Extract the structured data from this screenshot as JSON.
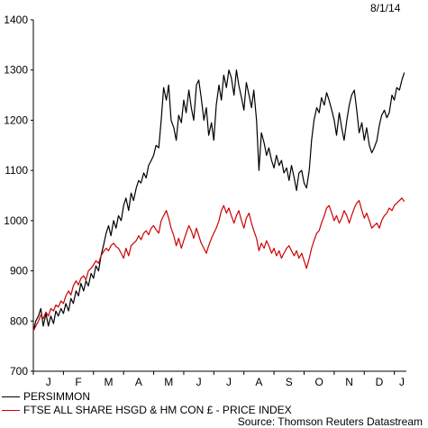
{
  "date_stamp": "8/1/14",
  "legend": [
    {
      "label": "PERSIMMON",
      "color": "#000000"
    },
    {
      "label": "FTSE ALL SHARE HSGD & HM CON £ - PRICE INDEX",
      "color": "#cc0000"
    }
  ],
  "source": "Source: Thomson Reuters Datastream",
  "chart_data": {
    "type": "line",
    "ylim": [
      700,
      1400
    ],
    "y_ticks": [
      700,
      800,
      900,
      1000,
      1100,
      1200,
      1300,
      1400
    ],
    "x_tick_labels": [
      "J",
      "F",
      "M",
      "A",
      "M",
      "J",
      "J",
      "A",
      "S",
      "O",
      "N",
      "D",
      "J"
    ],
    "x_range_months": [
      0,
      12.4
    ],
    "grid": false,
    "legend_position": "bottom",
    "series": [
      {
        "name": "PERSIMMON",
        "color": "#000000",
        "points": [
          [
            0.0,
            780
          ],
          [
            0.08,
            800
          ],
          [
            0.17,
            810
          ],
          [
            0.25,
            825
          ],
          [
            0.33,
            790
          ],
          [
            0.42,
            815
          ],
          [
            0.5,
            790
          ],
          [
            0.58,
            810
          ],
          [
            0.67,
            795
          ],
          [
            0.75,
            820
          ],
          [
            0.83,
            810
          ],
          [
            0.92,
            825
          ],
          [
            1.0,
            815
          ],
          [
            1.08,
            835
          ],
          [
            1.17,
            820
          ],
          [
            1.25,
            845
          ],
          [
            1.33,
            835
          ],
          [
            1.42,
            860
          ],
          [
            1.5,
            850
          ],
          [
            1.58,
            875
          ],
          [
            1.67,
            860
          ],
          [
            1.75,
            880
          ],
          [
            1.83,
            870
          ],
          [
            1.92,
            895
          ],
          [
            2.0,
            885
          ],
          [
            2.08,
            910
          ],
          [
            2.17,
            900
          ],
          [
            2.25,
            930
          ],
          [
            2.33,
            950
          ],
          [
            2.42,
            975
          ],
          [
            2.5,
            990
          ],
          [
            2.58,
            970
          ],
          [
            2.67,
            1000
          ],
          [
            2.75,
            985
          ],
          [
            2.83,
            1010
          ],
          [
            2.92,
            1000
          ],
          [
            3.0,
            1030
          ],
          [
            3.08,
            1045
          ],
          [
            3.17,
            1020
          ],
          [
            3.25,
            1055
          ],
          [
            3.33,
            1040
          ],
          [
            3.42,
            1065
          ],
          [
            3.5,
            1080
          ],
          [
            3.58,
            1075
          ],
          [
            3.67,
            1095
          ],
          [
            3.75,
            1085
          ],
          [
            3.83,
            1110
          ],
          [
            3.92,
            1120
          ],
          [
            4.0,
            1130
          ],
          [
            4.08,
            1150
          ],
          [
            4.17,
            1145
          ],
          [
            4.25,
            1200
          ],
          [
            4.33,
            1265
          ],
          [
            4.42,
            1240
          ],
          [
            4.5,
            1270
          ],
          [
            4.58,
            1200
          ],
          [
            4.67,
            1185
          ],
          [
            4.75,
            1160
          ],
          [
            4.83,
            1210
          ],
          [
            4.92,
            1195
          ],
          [
            5.0,
            1240
          ],
          [
            5.08,
            1215
          ],
          [
            5.17,
            1260
          ],
          [
            5.25,
            1225
          ],
          [
            5.33,
            1200
          ],
          [
            5.42,
            1270
          ],
          [
            5.5,
            1280
          ],
          [
            5.58,
            1245
          ],
          [
            5.67,
            1200
          ],
          [
            5.75,
            1225
          ],
          [
            5.83,
            1170
          ],
          [
            5.92,
            1195
          ],
          [
            6.0,
            1160
          ],
          [
            6.08,
            1230
          ],
          [
            6.17,
            1270
          ],
          [
            6.25,
            1240
          ],
          [
            6.33,
            1290
          ],
          [
            6.42,
            1265
          ],
          [
            6.5,
            1300
          ],
          [
            6.58,
            1285
          ],
          [
            6.67,
            1250
          ],
          [
            6.75,
            1300
          ],
          [
            6.83,
            1270
          ],
          [
            6.92,
            1245
          ],
          [
            7.0,
            1220
          ],
          [
            7.08,
            1275
          ],
          [
            7.17,
            1250
          ],
          [
            7.25,
            1225
          ],
          [
            7.33,
            1260
          ],
          [
            7.42,
            1200
          ],
          [
            7.5,
            1100
          ],
          [
            7.58,
            1175
          ],
          [
            7.67,
            1155
          ],
          [
            7.75,
            1130
          ],
          [
            7.83,
            1145
          ],
          [
            7.92,
            1120
          ],
          [
            8.0,
            1105
          ],
          [
            8.08,
            1130
          ],
          [
            8.17,
            1110
          ],
          [
            8.25,
            1120
          ],
          [
            8.33,
            1095
          ],
          [
            8.42,
            1105
          ],
          [
            8.5,
            1080
          ],
          [
            8.58,
            1110
          ],
          [
            8.67,
            1085
          ],
          [
            8.75,
            1060
          ],
          [
            8.83,
            1095
          ],
          [
            8.92,
            1100
          ],
          [
            9.0,
            1075
          ],
          [
            9.08,
            1065
          ],
          [
            9.17,
            1100
          ],
          [
            9.25,
            1160
          ],
          [
            9.33,
            1200
          ],
          [
            9.42,
            1225
          ],
          [
            9.5,
            1215
          ],
          [
            9.58,
            1245
          ],
          [
            9.67,
            1230
          ],
          [
            9.75,
            1255
          ],
          [
            9.83,
            1240
          ],
          [
            9.92,
            1220
          ],
          [
            10.0,
            1200
          ],
          [
            10.08,
            1170
          ],
          [
            10.17,
            1215
          ],
          [
            10.25,
            1185
          ],
          [
            10.33,
            1160
          ],
          [
            10.42,
            1200
          ],
          [
            10.5,
            1230
          ],
          [
            10.58,
            1250
          ],
          [
            10.67,
            1260
          ],
          [
            10.75,
            1220
          ],
          [
            10.83,
            1175
          ],
          [
            10.92,
            1195
          ],
          [
            11.0,
            1160
          ],
          [
            11.08,
            1185
          ],
          [
            11.17,
            1150
          ],
          [
            11.25,
            1135
          ],
          [
            11.33,
            1145
          ],
          [
            11.42,
            1160
          ],
          [
            11.5,
            1190
          ],
          [
            11.58,
            1210
          ],
          [
            11.67,
            1220
          ],
          [
            11.75,
            1205
          ],
          [
            11.83,
            1215
          ],
          [
            11.92,
            1250
          ],
          [
            12.0,
            1240
          ],
          [
            12.08,
            1265
          ],
          [
            12.17,
            1260
          ],
          [
            12.25,
            1280
          ],
          [
            12.33,
            1295
          ]
        ]
      },
      {
        "name": "FTSE ALL SHARE HSGD & HM CON £ - PRICE INDEX",
        "color": "#cc0000",
        "points": [
          [
            0.0,
            780
          ],
          [
            0.08,
            790
          ],
          [
            0.17,
            800
          ],
          [
            0.25,
            812
          ],
          [
            0.33,
            805
          ],
          [
            0.42,
            818
          ],
          [
            0.5,
            810
          ],
          [
            0.58,
            825
          ],
          [
            0.67,
            820
          ],
          [
            0.75,
            832
          ],
          [
            0.83,
            828
          ],
          [
            0.92,
            840
          ],
          [
            1.0,
            835
          ],
          [
            1.08,
            850
          ],
          [
            1.17,
            860
          ],
          [
            1.25,
            852
          ],
          [
            1.33,
            870
          ],
          [
            1.42,
            880
          ],
          [
            1.5,
            872
          ],
          [
            1.58,
            885
          ],
          [
            1.67,
            890
          ],
          [
            1.75,
            882
          ],
          [
            1.83,
            900
          ],
          [
            1.92,
            905
          ],
          [
            2.0,
            912
          ],
          [
            2.08,
            920
          ],
          [
            2.17,
            915
          ],
          [
            2.25,
            930
          ],
          [
            2.33,
            938
          ],
          [
            2.42,
            945
          ],
          [
            2.5,
            940
          ],
          [
            2.58,
            950
          ],
          [
            2.67,
            955
          ],
          [
            2.75,
            948
          ],
          [
            2.83,
            945
          ],
          [
            2.92,
            935
          ],
          [
            3.0,
            925
          ],
          [
            3.08,
            945
          ],
          [
            3.17,
            930
          ],
          [
            3.25,
            950
          ],
          [
            3.33,
            955
          ],
          [
            3.42,
            960
          ],
          [
            3.5,
            970
          ],
          [
            3.58,
            962
          ],
          [
            3.67,
            975
          ],
          [
            3.75,
            980
          ],
          [
            3.83,
            972
          ],
          [
            3.92,
            985
          ],
          [
            4.0,
            990
          ],
          [
            4.08,
            982
          ],
          [
            4.17,
            975
          ],
          [
            4.25,
            1000
          ],
          [
            4.33,
            1010
          ],
          [
            4.42,
            1020
          ],
          [
            4.5,
            1005
          ],
          [
            4.58,
            985
          ],
          [
            4.67,
            970
          ],
          [
            4.75,
            950
          ],
          [
            4.83,
            965
          ],
          [
            4.92,
            945
          ],
          [
            5.0,
            960
          ],
          [
            5.08,
            975
          ],
          [
            5.17,
            990
          ],
          [
            5.25,
            980
          ],
          [
            5.33,
            965
          ],
          [
            5.42,
            985
          ],
          [
            5.5,
            970
          ],
          [
            5.58,
            955
          ],
          [
            5.67,
            945
          ],
          [
            5.75,
            935
          ],
          [
            5.83,
            950
          ],
          [
            5.92,
            965
          ],
          [
            6.0,
            975
          ],
          [
            6.08,
            985
          ],
          [
            6.17,
            1000
          ],
          [
            6.25,
            1020
          ],
          [
            6.33,
            1030
          ],
          [
            6.42,
            1015
          ],
          [
            6.5,
            1025
          ],
          [
            6.58,
            1010
          ],
          [
            6.67,
            995
          ],
          [
            6.75,
            1010
          ],
          [
            6.83,
            1020
          ],
          [
            6.92,
            1000
          ],
          [
            7.0,
            985
          ],
          [
            7.08,
            1005
          ],
          [
            7.17,
            1015
          ],
          [
            7.25,
            995
          ],
          [
            7.33,
            980
          ],
          [
            7.42,
            965
          ],
          [
            7.5,
            940
          ],
          [
            7.58,
            955
          ],
          [
            7.67,
            945
          ],
          [
            7.75,
            960
          ],
          [
            7.83,
            950
          ],
          [
            7.92,
            935
          ],
          [
            8.0,
            945
          ],
          [
            8.08,
            930
          ],
          [
            8.17,
            940
          ],
          [
            8.25,
            925
          ],
          [
            8.33,
            935
          ],
          [
            8.42,
            945
          ],
          [
            8.5,
            950
          ],
          [
            8.58,
            940
          ],
          [
            8.67,
            930
          ],
          [
            8.75,
            940
          ],
          [
            8.83,
            925
          ],
          [
            8.92,
            935
          ],
          [
            9.0,
            920
          ],
          [
            9.08,
            905
          ],
          [
            9.17,
            925
          ],
          [
            9.25,
            945
          ],
          [
            9.33,
            960
          ],
          [
            9.42,
            975
          ],
          [
            9.5,
            980
          ],
          [
            9.58,
            995
          ],
          [
            9.67,
            1010
          ],
          [
            9.75,
            1025
          ],
          [
            9.83,
            1030
          ],
          [
            9.92,
            1015
          ],
          [
            10.0,
            1000
          ],
          [
            10.08,
            1010
          ],
          [
            10.17,
            995
          ],
          [
            10.25,
            1005
          ],
          [
            10.33,
            1020
          ],
          [
            10.42,
            1010
          ],
          [
            10.5,
            995
          ],
          [
            10.58,
            1010
          ],
          [
            10.67,
            1025
          ],
          [
            10.75,
            1035
          ],
          [
            10.83,
            1040
          ],
          [
            10.92,
            1020
          ],
          [
            11.0,
            1005
          ],
          [
            11.08,
            1015
          ],
          [
            11.17,
            1000
          ],
          [
            11.25,
            985
          ],
          [
            11.33,
            990
          ],
          [
            11.42,
            995
          ],
          [
            11.5,
            985
          ],
          [
            11.58,
            1000
          ],
          [
            11.67,
            1010
          ],
          [
            11.75,
            1015
          ],
          [
            11.83,
            1025
          ],
          [
            11.92,
            1020
          ],
          [
            12.0,
            1030
          ],
          [
            12.08,
            1035
          ],
          [
            12.17,
            1040
          ],
          [
            12.25,
            1045
          ],
          [
            12.33,
            1038
          ]
        ]
      }
    ]
  }
}
